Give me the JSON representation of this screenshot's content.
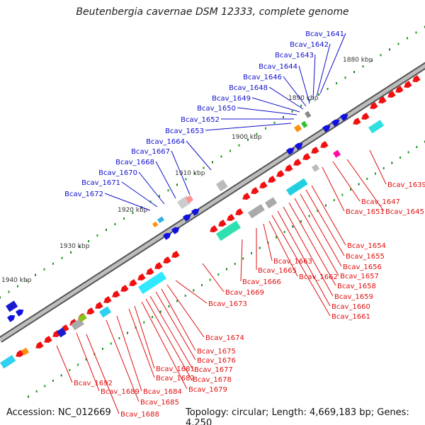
{
  "title": "Beutenbergia cavernae DSM 12333, complete genome",
  "footer": {
    "accession": "Accession: NC_012669",
    "summary": "Topology: circular; Length: 4,669,183 bp; Genes: 4,250"
  },
  "colors": {
    "forward_label": "#1010cc",
    "reverse_label": "#e01010",
    "backbone": "#888888",
    "tick": "#1a7a1a",
    "gene_blue": "#1010e0",
    "gene_red": "#f01010"
  },
  "scale_labels": [
    {
      "kbp": 1880,
      "text": "1880 kbp"
    },
    {
      "kbp": 1890,
      "text": "1890 kbp"
    },
    {
      "kbp": 1900,
      "text": "1900 kbp"
    },
    {
      "kbp": 1910,
      "text": "1910 kbp"
    },
    {
      "kbp": 1920,
      "text": "1920 kbp"
    },
    {
      "kbp": 1930,
      "text": "1930 kbp"
    },
    {
      "kbp": 1940,
      "text": "1940 kbp"
    }
  ],
  "forward_genes": [
    "Bcav_1641",
    "Bcav_1642",
    "Bcav_1643",
    "Bcav_1644",
    "Bcav_1646",
    "Bcav_1648",
    "Bcav_1649",
    "Bcav_1650",
    "Bcav_1652",
    "Bcav_1653",
    "Bcav_1664",
    "Bcav_1667",
    "Bcav_1668",
    "Bcav_1670",
    "Bcav_1671",
    "Bcav_1672"
  ],
  "reverse_genes": [
    "Bcav_1639",
    "Bcav_1647",
    "Bcav_1651",
    "Bcav_1645",
    "Bcav_1654",
    "Bcav_1655",
    "Bcav_1656",
    "Bcav_1657",
    "Bcav_1658",
    "Bcav_1659",
    "Bcav_1660",
    "Bcav_1661",
    "Bcav_1663",
    "Bcav_1665",
    "Bcav_1662",
    "Bcav_1666",
    "Bcav_1669",
    "Bcav_1673",
    "Bcav_1674",
    "Bcav_1675",
    "Bcav_1676",
    "Bcav_1677",
    "Bcav_1678",
    "Bcav_1679",
    "Bcav_1681",
    "Bcav_1682",
    "Bcav_1684",
    "Bcav_1685",
    "Bcav_1688",
    "Bcav_1689",
    "Bcav_1692"
  ]
}
